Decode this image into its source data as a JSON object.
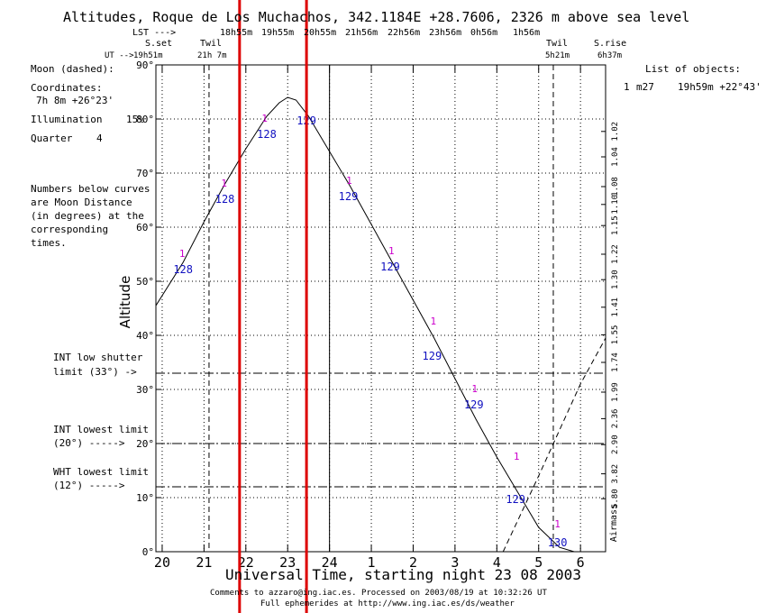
{
  "title": "Altitudes, Roque de Los Muchachos, 342.1184E +28.7606, 2326 m above sea level",
  "header": {
    "lst_label": "LST --->",
    "lst_times": [
      "18h55m",
      "19h55m",
      "20h55m",
      "21h56m",
      "22h56m",
      "23h56m",
      "0h56m",
      "1h56m"
    ],
    "ut_label": "UT -->",
    "sunset_label": "S.set",
    "sunset_time": "19h51m",
    "twil_label": "Twil",
    "twil_eve_time": "21h 7m",
    "twil_morn_time": "5h21m",
    "sunrise_label": "S.rise",
    "sunrise_time": "6h37m"
  },
  "left_panel": {
    "moon_label": "Moon (dashed):",
    "coords_label": "Coordinates:",
    "coords_value": "7h 8m  +26°23'",
    "illum_label": "Illumination",
    "illum_value": "15%",
    "quarter_label": "Quarter",
    "quarter_value": "4",
    "note_lines": [
      "Numbers below curves",
      "are Moon Distance",
      "(in degrees) at the",
      "corresponding",
      "times."
    ],
    "int_shutter_lines": [
      "INT low shutter",
      "limit (33°) ->"
    ],
    "int_lowest_lines": [
      "INT lowest limit",
      "(20°) ----->"
    ],
    "wht_lowest_lines": [
      "WHT lowest limit",
      "(12°) ----->"
    ]
  },
  "right_panel": {
    "list_label": "List of objects:",
    "object_index": "1",
    "object_name": "m27",
    "object_coords": "19h59m +22°43'"
  },
  "footer": {
    "line1": "Comments to azzaro@ing.iac.es. Processed on 2003/08/19 at 10:32:26 UT",
    "line2": "Full ephemerides at http://www.ing.iac.es/ds/weather"
  },
  "colors": {
    "object_marker": "#cc00cc",
    "moon_distance": "#1010c0",
    "highlight_line": "#dd0000"
  },
  "chart_data": {
    "type": "line",
    "ylabel": "Altitude",
    "xlabel": "Universal Time, starting night 23 08 2003",
    "x_ticks": [
      "20",
      "21",
      "22",
      "23",
      "24",
      "1",
      "2",
      "3",
      "4",
      "5",
      "6"
    ],
    "y_ticks": [
      "0°",
      "10°",
      "20°",
      "30°",
      "40°",
      "50°",
      "60°",
      "70°",
      "80°",
      "90°"
    ],
    "xlim_ut_hours": [
      19.85,
      30.6
    ],
    "ylim": [
      0,
      90
    ],
    "airmass_label": "Airmass",
    "airmass_ticks": [
      {
        "alt": 77.7,
        "label": "1.02"
      },
      {
        "alt": 73.0,
        "label": "1.04"
      },
      {
        "alt": 67.5,
        "label": "1.08"
      },
      {
        "alt": 64.2,
        "label": "1.10"
      },
      {
        "alt": 60.3,
        "label": "1.15"
      },
      {
        "alt": 55.0,
        "label": "1.22"
      },
      {
        "alt": 50.3,
        "label": "1.30"
      },
      {
        "alt": 45.2,
        "label": "1.41"
      },
      {
        "alt": 40.1,
        "label": "1.55"
      },
      {
        "alt": 35.0,
        "label": "1.74"
      },
      {
        "alt": 29.5,
        "label": "1.99"
      },
      {
        "alt": 24.6,
        "label": "2.36"
      },
      {
        "alt": 19.8,
        "label": "2.90"
      },
      {
        "alt": 14.4,
        "label": "3.82"
      },
      {
        "alt": 9.8,
        "label": "5.80"
      }
    ],
    "limits": [
      {
        "name": "INT low shutter",
        "alt": 33
      },
      {
        "name": "INT lowest",
        "alt": 20
      },
      {
        "name": "WHT lowest",
        "alt": 12
      }
    ],
    "twilight_ut": [
      21.12,
      29.35
    ],
    "midnight_ut": 24,
    "highlight_ut": [
      21.85,
      23.45
    ],
    "series": [
      {
        "name": "m27",
        "style": "solid",
        "x": [
          19.85,
          20.5,
          21.0,
          21.5,
          22.0,
          22.5,
          22.8,
          23.0,
          23.2,
          23.5,
          24.0,
          24.5,
          25.0,
          25.5,
          26.0,
          26.5,
          27.0,
          27.5,
          28.0,
          28.5,
          29.0,
          29.5,
          29.85
        ],
        "y": [
          45.5,
          53.5,
          61.0,
          68.0,
          74.5,
          80.5,
          83.0,
          84.0,
          83.5,
          80.5,
          74.0,
          67.5,
          60.5,
          53.5,
          46.5,
          39.5,
          32.0,
          24.5,
          17.5,
          11.0,
          4.5,
          0.8,
          0
        ]
      },
      {
        "name": "Moon",
        "style": "dashed",
        "x": [
          28.15,
          29.0,
          30.0,
          30.6
        ],
        "y": [
          0,
          14.0,
          31.0,
          39.5
        ]
      }
    ],
    "object_marks": [
      {
        "x": 20.48,
        "y": 54.5
      },
      {
        "x": 21.48,
        "y": 67.5
      },
      {
        "x": 22.45,
        "y": 79.5
      },
      {
        "x": 24.47,
        "y": 68.0
      },
      {
        "x": 25.48,
        "y": 55.0
      },
      {
        "x": 26.48,
        "y": 42.0
      },
      {
        "x": 27.47,
        "y": 29.5
      },
      {
        "x": 28.47,
        "y": 17.0
      },
      {
        "x": 29.45,
        "y": 4.5
      }
    ],
    "moon_distances": [
      {
        "x": 20.5,
        "y": 51.5,
        "label": "128"
      },
      {
        "x": 21.5,
        "y": 64.5,
        "label": "128"
      },
      {
        "x": 22.5,
        "y": 76.5,
        "label": "128"
      },
      {
        "x": 23.45,
        "y": 79.0,
        "label": "129"
      },
      {
        "x": 24.45,
        "y": 65.0,
        "label": "129"
      },
      {
        "x": 25.45,
        "y": 52.0,
        "label": "129"
      },
      {
        "x": 26.45,
        "y": 35.5,
        "label": "129"
      },
      {
        "x": 27.45,
        "y": 26.5,
        "label": "129"
      },
      {
        "x": 28.45,
        "y": 9.0,
        "label": "129"
      },
      {
        "x": 29.45,
        "y": 1.0,
        "label": "130"
      }
    ]
  }
}
